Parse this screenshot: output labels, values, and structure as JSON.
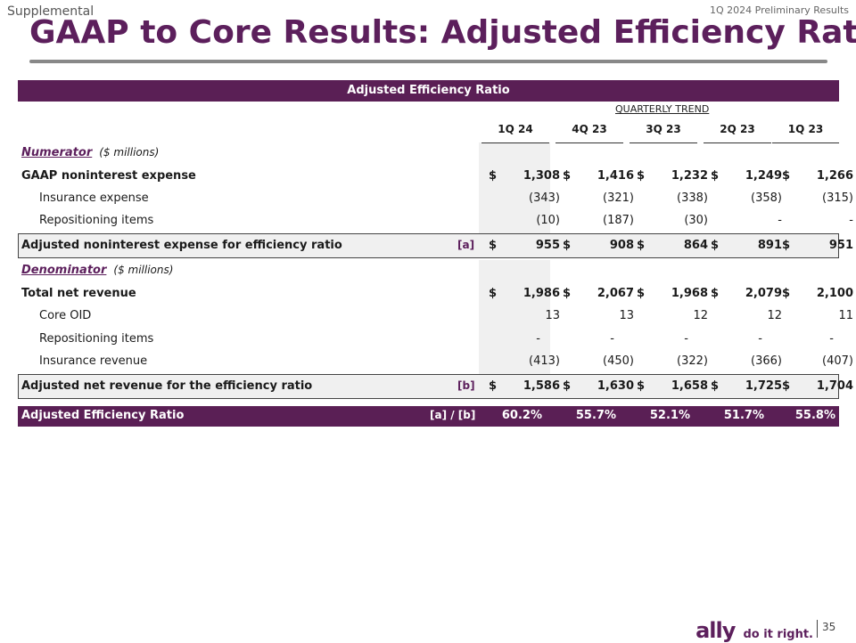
{
  "header": {
    "supplemental": "Supplemental",
    "preliminary": "1Q 2024 Preliminary Results",
    "title": "GAAP to Core Results: Adjusted Efficiency Ratio"
  },
  "table": {
    "title": "Adjusted Efficiency Ratio",
    "trend_label": "QUARTERLY TREND",
    "quarters": [
      "1Q 24",
      "4Q 23",
      "3Q 23",
      "2Q 23",
      "1Q 23"
    ],
    "numerator": {
      "label": "Numerator",
      "note": "($ millions)"
    },
    "denominator": {
      "label": "Denominator",
      "note": "($ millions)"
    },
    "rows": {
      "gaap_nonint": {
        "label": "GAAP noninterest expense",
        "values": [
          "1,308",
          "1,416",
          "1,232",
          "1,249",
          "1,266"
        ]
      },
      "insurance_expense": {
        "label": "Insurance expense",
        "values": [
          "(343)",
          "(321)",
          "(338)",
          "(358)",
          "(315)"
        ]
      },
      "repositioning_1": {
        "label": "Repositioning items",
        "values": [
          "(10)",
          "(187)",
          "(30)",
          "-",
          "-"
        ]
      },
      "adj_nonint": {
        "label": "Adjusted noninterest expense for efficiency ratio",
        "tag": "[a]",
        "values": [
          "955",
          "908",
          "864",
          "891",
          "951"
        ]
      },
      "total_rev": {
        "label": "Total net revenue",
        "values": [
          "1,986",
          "2,067",
          "1,968",
          "2,079",
          "2,100"
        ]
      },
      "core_oid": {
        "label": "Core OID",
        "values": [
          "13",
          "13",
          "12",
          "12",
          "11"
        ]
      },
      "repositioning_2": {
        "label": "Repositioning items",
        "values": [
          "-",
          "-",
          "-",
          "-",
          "-"
        ]
      },
      "insurance_revenue": {
        "label": "Insurance revenue",
        "values": [
          "(413)",
          "(450)",
          "(322)",
          "(366)",
          "(407)"
        ]
      },
      "adj_rev": {
        "label": "Adjusted net revenue for the efficiency ratio",
        "tag": "[b]",
        "values": [
          "1,586",
          "1,630",
          "1,658",
          "1,725",
          "1,704"
        ]
      },
      "ratio": {
        "label": "Adjusted Efficiency Ratio",
        "tag": "[a] / [b]",
        "values": [
          "60.2%",
          "55.7%",
          "52.1%",
          "51.7%",
          "55.8%"
        ]
      }
    },
    "currency": "$"
  },
  "footer": {
    "logo_word": "ally",
    "tagline": "do it right.",
    "page": "35"
  },
  "colors": {
    "brand": "#5a1f55"
  }
}
